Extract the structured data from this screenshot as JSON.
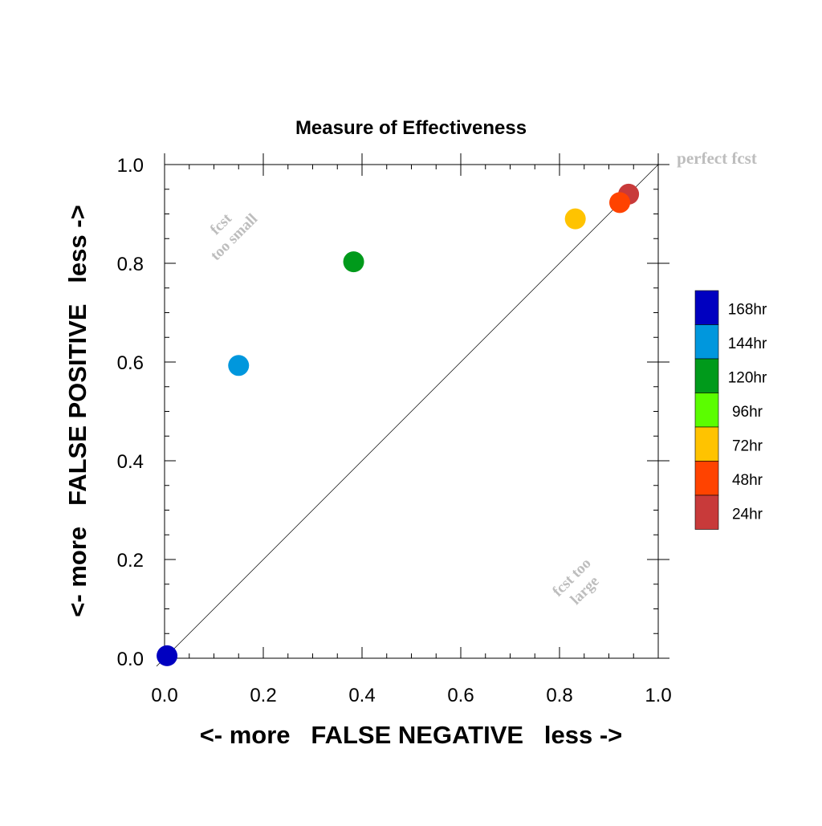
{
  "chart_data": {
    "type": "scatter",
    "title": "Measure of Effectiveness",
    "xlabel": "<- more   FALSE NEGATIVE   less ->",
    "ylabel": "<- more   FALSE POSITIVE   less ->",
    "xlim": [
      0.0,
      1.0
    ],
    "ylim": [
      0.0,
      1.0
    ],
    "xticks": [
      "0.0",
      "0.2",
      "0.4",
      "0.6",
      "0.8",
      "1.0"
    ],
    "yticks": [
      "0.0",
      "0.2",
      "0.4",
      "0.6",
      "0.8",
      "1.0"
    ],
    "grid": false,
    "reference_line": {
      "from": [
        0,
        0
      ],
      "to": [
        1,
        1
      ]
    },
    "annotations": {
      "perfect": "perfect fcst",
      "too_small": [
        "fcst",
        "too small"
      ],
      "too_large": [
        "fcst too",
        "large"
      ]
    },
    "legend_position": "right",
    "series": [
      {
        "name": "168hr",
        "color": "#0000c0",
        "x": 0.005,
        "y": 0.005
      },
      {
        "name": "144hr",
        "color": "#0097dd",
        "x": 0.15,
        "y": 0.593
      },
      {
        "name": "120hr",
        "color": "#009a1b",
        "x": 0.383,
        "y": 0.803
      },
      {
        "name": "96hr",
        "color": "#5bfd00",
        "x": null,
        "y": null
      },
      {
        "name": "72hr",
        "color": "#ffc300",
        "x": 0.832,
        "y": 0.89
      },
      {
        "name": "48hr",
        "color": "#ff4300",
        "x": 0.922,
        "y": 0.923
      },
      {
        "name": "24hr",
        "color": "#c83a3a",
        "x": 0.94,
        "y": 0.94
      }
    ]
  }
}
